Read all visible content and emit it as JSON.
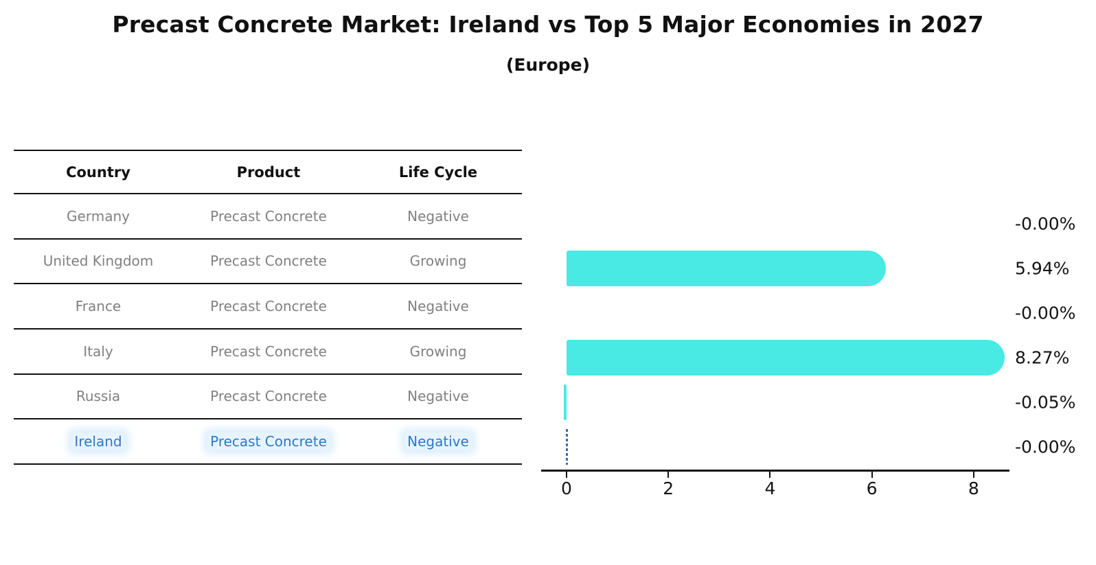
{
  "title": "Precast Concrete Market: Ireland vs Top 5 Major Economies in 2027",
  "subtitle": "(Europe)",
  "table": {
    "headers": [
      "Country",
      "Product",
      "Life Cycle"
    ],
    "rows": [
      {
        "country": "Germany",
        "product": "Precast Concrete",
        "life_cycle": "Negative",
        "highlighted": false
      },
      {
        "country": "United Kingdom",
        "product": "Precast Concrete",
        "life_cycle": "Growing",
        "highlighted": false
      },
      {
        "country": "France",
        "product": "Precast Concrete",
        "life_cycle": "Negative",
        "highlighted": false
      },
      {
        "country": "Italy",
        "product": "Precast Concrete",
        "life_cycle": "Growing",
        "highlighted": false
      },
      {
        "country": "Russia",
        "product": "Precast Concrete",
        "life_cycle": "Negative",
        "highlighted": false
      },
      {
        "country": "Ireland",
        "product": "Precast Concrete",
        "life_cycle": "Negative",
        "highlighted": true
      }
    ]
  },
  "chart_data": {
    "type": "bar",
    "orientation": "horizontal",
    "title": "Precast Concrete Market: Ireland vs Top 5 Major Economies in 2027",
    "subtitle": "(Europe)",
    "categories": [
      "Germany",
      "United Kingdom",
      "France",
      "Italy",
      "Russia",
      "Ireland"
    ],
    "values": [
      -0.0,
      5.94,
      -0.0,
      8.27,
      -0.05,
      -0.0
    ],
    "value_labels": [
      "-0.00%",
      "5.94%",
      "-0.00%",
      "8.27%",
      "-0.05%",
      "-0.00%"
    ],
    "x_ticks": [
      0,
      2,
      4,
      6,
      8
    ],
    "xlim": [
      -0.5,
      8.7
    ],
    "grid": false,
    "legend": false,
    "highlight_country": "Ireland",
    "highlight_marker": "dashed-vertical-line-at-zero"
  },
  "colors": {
    "bar": "#49E9E4",
    "highlight_text": "#2E78C8",
    "dashed_line": "#3A68B2",
    "body_text": "#808080",
    "ink": "#111111"
  }
}
